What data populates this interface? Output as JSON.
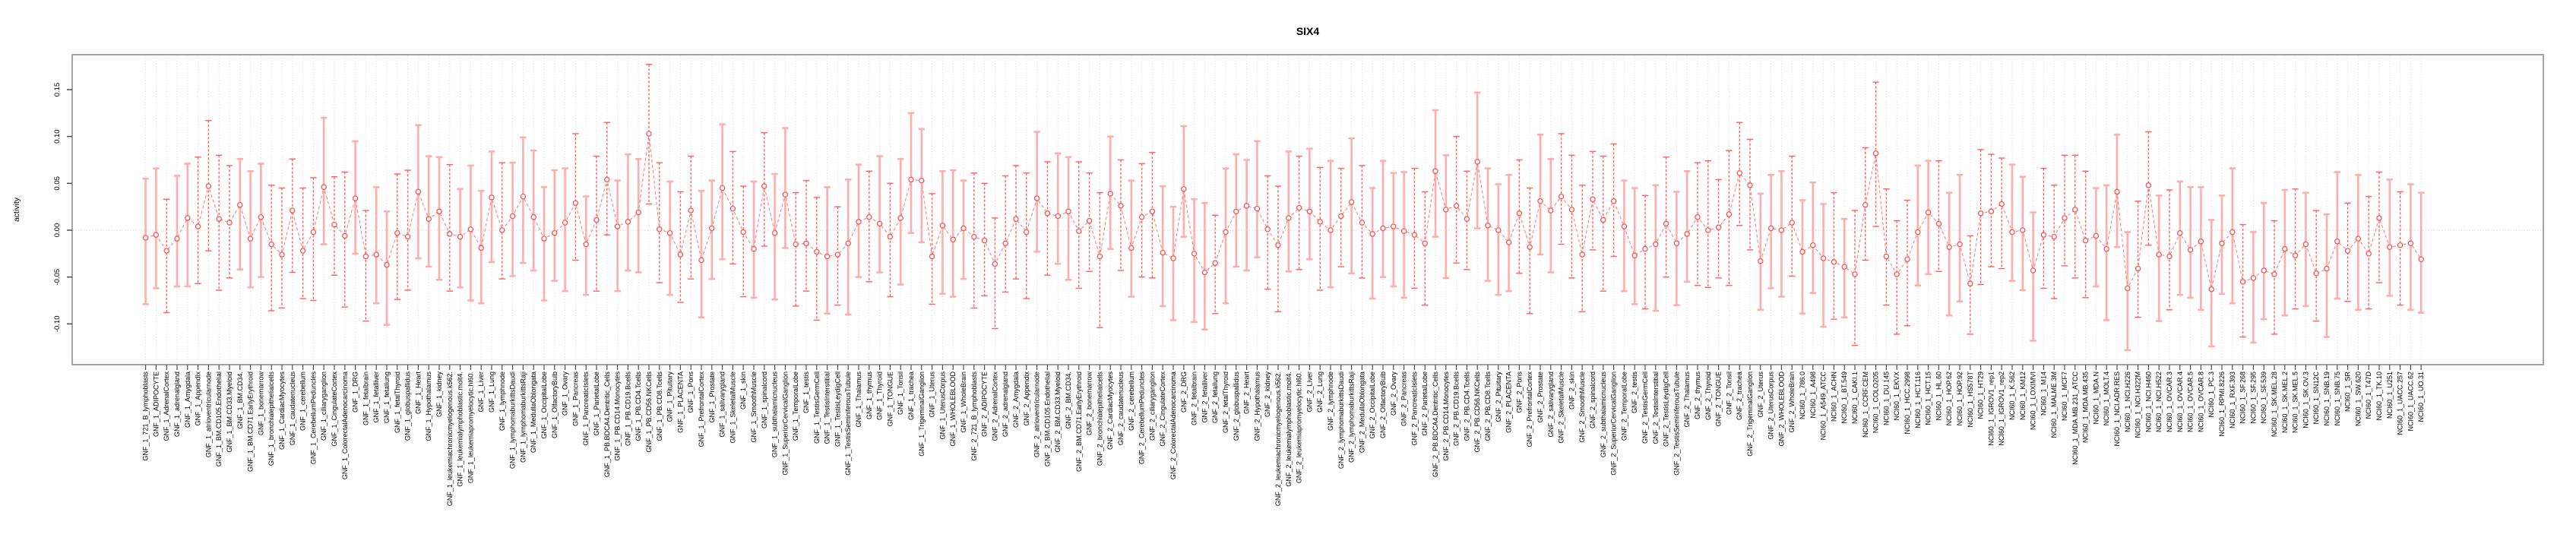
{
  "title": "SIX4",
  "chart_data": {
    "type": "scatter",
    "title": "SIX4",
    "xlabel": "",
    "ylabel": "activity",
    "ylim": [
      -0.143,
      0.187
    ],
    "yticks": [
      0.15,
      0.1,
      0.05,
      0.0,
      -0.05,
      -0.1
    ],
    "ytick_labels": [
      "0.15",
      "0.10",
      "0.05",
      "0.00",
      "-0.05",
      "-0.10"
    ],
    "zero_line": 0,
    "grid": "vertical dotted gridline per category, dotted horizontal line at 0",
    "legend": "none",
    "point_style": "open-circle",
    "line_style": "dashed connecting line",
    "error_bars": true,
    "panel_prefixes": [
      "GNF_1_",
      "GNF_2_"
    ],
    "categories_gnf_suffixes": [
      "721_B_lymphoblasts",
      "ADIPOCYTE",
      "AdrenalCortex",
      "adrenalgland",
      "Amygdala",
      "Appendix",
      "atrioventricularnode",
      "BM.CD105.Endothelial",
      "BM.CD33.Myeloid",
      "BM.CD34.",
      "BM.CD71.EarlyErythroid",
      "bonemarrow",
      "bronchialepithelialcells",
      "CardiacMyocytes",
      "caudatenucleus",
      "cerebellum",
      "CerebellumPeduncles",
      "ciliaryganglion",
      "CingulateCortex",
      "ColorectalAdenocarcinoma",
      "DRG",
      "fetalbrain",
      "fetalliver",
      "fetallung",
      "fetalThyroid",
      "globuspallidus",
      "Heart",
      "Hypothalamus",
      "kidney",
      "leukemiachronicmyelogenous.k562.",
      "leukemialymphoblastic.molt4.",
      "leukemiapromyelocytic.hl60.",
      "Liver",
      "Lung",
      "lymphnode",
      "lymphomaburkittsDaudi",
      "lymphomaburkittsRaji",
      "MedullaOblongata",
      "OccipitalLobe",
      "OlfactoryBulb",
      "Ovary",
      "Pancreas",
      "PancreaticIslets",
      "ParietalLobe",
      "PB.BDCA4.Dentritic_Cells",
      "PB.CD14.Monocytes",
      "PB.CD19.Bcells",
      "PB.CD4.Tcells",
      "PB.CD56.NKCells",
      "PB.CD8.Tcells",
      "Pituitary",
      "PLACENTA",
      "Pons",
      "PrefrontalCortex",
      "Prostate",
      "salivarygland",
      "SkeletalMuscle",
      "skin",
      "SmoothMuscle",
      "spinalcord",
      "subthalamicnucleus",
      "SuperiorCervicalGanglion",
      "TemporalLobe",
      "testis",
      "TestisGermCell",
      "TestisInterstitial",
      "TestisLeydigCell",
      "TestisSeminiferousTubule",
      "Thalamus",
      "thymus",
      "Thyroid",
      "TONGUE",
      "Tonsil",
      "trachea",
      "TrigeminalGanglion",
      "Uterus",
      "UterusCorpus",
      "WHOLEBLOOD",
      "WholeBrain"
    ],
    "categories_nci60": [
      "NCI60_1_786.0",
      "NCI60_1_A498",
      "NCI60_1_A549_ATCC",
      "NCI60_1_ACHN",
      "NCI60_1_BT.549",
      "NCI60_1_CAKI.1",
      "NCI60_1_CCRF.CEM",
      "NCI60_1_COLO205",
      "NCI60_1_DU.145",
      "NCI60_1_EKVX",
      "NCI60_1_HCC.2998",
      "NCI60_1_HCT.116",
      "NCI60_1_HCT.15",
      "NCI60_1_HL.60",
      "NCI60_1_HOP.62",
      "NCI60_1_HOP.92",
      "NCI60_1_HS578T",
      "NCI60_1_HT29",
      "NCI60_1_IGROV1_rep1",
      "NCI60_1_IGROV1_rep2",
      "NCI60_1_K.562",
      "NCI60_1_KM12",
      "NCI60_1_LOXIMVI",
      "NCI60_1_M14",
      "NCI60_1_MALME.3M",
      "NCI60_1_MCF7",
      "NCI60_1_MDA.MB.231_ATCC",
      "NCI60_1_MDA.MB.435",
      "NCI60_1_MDA.N",
      "NCI60_1_MOLT.4",
      "NCI60_1_NCI.ADR.RES",
      "NCI60_1_NCI.H226",
      "NCI60_1_NCI.H322M",
      "NCI60_1_NCI.H460",
      "NCI60_1_NCI.H522",
      "NCI60_1_OVCAR.3",
      "NCI60_1_OVCAR.4",
      "NCI60_1_OVCAR.5",
      "NCI60_1_OVCAR.8",
      "NCI60_1_PC.3",
      "NCI60_1_RPMI.8226",
      "NCI60_1_RXF.393",
      "NCI60_1_SF.268",
      "NCI60_1_SF.295",
      "NCI60_1_SF.539",
      "NCI60_1_SK.MEL.28",
      "NCI60_1_SK.MEL.2",
      "NCI60_1_SK.MEL.5",
      "NCI60_1_SK.OV.3",
      "NCI60_1_SN12C",
      "NCI60_1_SNB.19",
      "NCI60_1_SNB.75",
      "NCI60_1_SR",
      "NCI60_1_SW.620",
      "NCI60_1_T47D",
      "NCI60_1_TK.10",
      "NCI60_1_U251",
      "NCI60_1_UACC.257",
      "NCI60_1_UACC.62",
      "NCI60_1_UO.31"
    ],
    "values": [
      -0.008,
      -0.005,
      -0.022,
      -0.009,
      0.013,
      0.004,
      0.047,
      0.012,
      0.008,
      0.027,
      -0.009,
      0.014,
      -0.015,
      -0.026,
      0.021,
      -0.022,
      -0.002,
      0.046,
      0.006,
      -0.006,
      0.034,
      -0.028,
      -0.026,
      -0.037,
      -0.003,
      -0.007,
      0.041,
      0.012,
      0.02,
      -0.004,
      -0.007,
      0.001,
      -0.019,
      0.035,
      0.0,
      0.015,
      0.036,
      0.014,
      -0.009,
      -0.003,
      0.008,
      0.029,
      -0.015,
      0.011,
      0.054,
      0.004,
      0.009,
      0.019,
      0.103,
      0.001,
      -0.003,
      -0.026,
      0.021,
      -0.032,
      0.002,
      0.045,
      0.023,
      -0.002,
      -0.02,
      0.047,
      -0.003,
      0.038,
      -0.015,
      -0.014,
      -0.023,
      -0.028,
      -0.026,
      -0.014,
      0.009,
      0.014,
      0.007,
      -0.007,
      0.013,
      0.054,
      0.053,
      -0.028,
      0.005,
      -0.01,
      0.002,
      -0.007,
      -0.011,
      -0.036,
      -0.014,
      0.012,
      -0.002,
      0.034,
      0.018,
      0.015,
      0.02,
      -0.001,
      0.01,
      -0.028,
      0.039,
      0.026,
      -0.019,
      0.014,
      0.02,
      -0.024,
      -0.03,
      0.044,
      -0.025,
      -0.045,
      -0.035,
      -0.002,
      0.02,
      0.026,
      0.023,
      0.001,
      -0.016,
      0.013,
      0.024,
      0.02,
      0.009,
      0.0,
      0.015,
      0.03,
      0.008,
      -0.004,
      0.002,
      0.004,
      -0.001,
      -0.005,
      -0.014,
      0.063,
      0.022,
      0.026,
      0.012,
      0.073,
      0.005,
      0.0,
      -0.013,
      0.018,
      -0.018,
      0.031,
      0.021,
      0.036,
      0.022,
      -0.026,
      0.033,
      0.011,
      0.031,
      0.004,
      -0.027,
      -0.02,
      -0.015,
      0.007,
      -0.014,
      -0.004,
      0.014,
      0.0,
      0.003,
      0.017,
      0.061,
      0.048,
      -0.033,
      0.002,
      0.0,
      0.008,
      -0.023,
      -0.016,
      -0.03,
      -0.034,
      -0.039,
      -0.047,
      0.027,
      0.082,
      -0.028,
      -0.047,
      -0.031,
      -0.002,
      0.019,
      0.007,
      -0.018,
      -0.015,
      -0.057,
      0.018,
      0.02,
      0.028,
      -0.002,
      0.0,
      -0.043,
      -0.005,
      -0.007,
      0.013,
      0.022,
      -0.011,
      -0.006,
      -0.02,
      0.041,
      -0.062,
      -0.041,
      0.048,
      -0.026,
      -0.028,
      -0.003,
      -0.021,
      -0.012,
      -0.063,
      -0.014,
      -0.002,
      -0.055,
      -0.051,
      -0.043,
      -0.047,
      -0.02,
      -0.027,
      -0.015,
      -0.046,
      -0.041,
      -0.012,
      -0.022,
      -0.009,
      -0.025,
      0.013,
      -0.018,
      -0.016,
      -0.014,
      -0.031
    ],
    "err_up_cycle": [
      0.063,
      0.071,
      0.055,
      0.067,
      0.058,
      0.074,
      0.051,
      0.068,
      0.061,
      0.049,
      0.072,
      0.057
    ],
    "err_dn_cycle": [
      0.071,
      0.057,
      0.066,
      0.051,
      0.073,
      0.061,
      0.054,
      0.076,
      0.059,
      0.069,
      0.052,
      0.064
    ],
    "err_overrides": {
      "6": [
        0.07,
        0.069
      ],
      "26": [
        0.071,
        0.071
      ],
      "48": [
        0.074,
        0.075
      ],
      "123": [
        0.065,
        0.07
      ],
      "127": [
        0.074,
        0.071
      ],
      "152": [
        0.054,
        0.056
      ],
      "165": [
        0.076,
        0.078
      ],
      "180": [
        0.062,
        0.075
      ],
      "189": [
        0.06,
        0.066
      ]
    },
    "colors": {
      "point": "#ff5252",
      "line": "#ff8080",
      "bar_light": "#ffadad",
      "bar_dark": "#ff6060",
      "grid": "#d8d8d8",
      "zero": "#c4c4c4",
      "box": "#9b9b9b",
      "tick": "#4d4d4d",
      "text": "#000000"
    }
  }
}
